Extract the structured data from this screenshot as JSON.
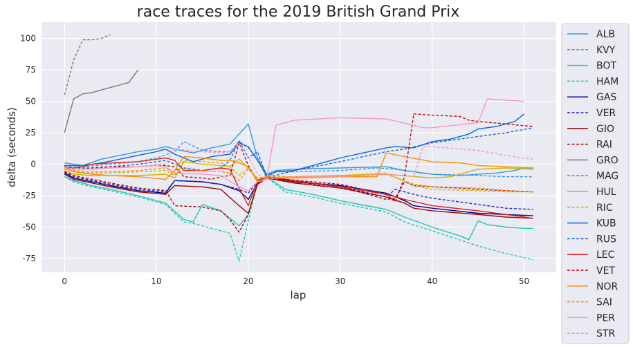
{
  "chart_data": {
    "type": "line",
    "title": "race traces for the 2019 British Grand Prix",
    "xlabel": "lap",
    "ylabel": "delta (seconds)",
    "xlim": [
      -2.5,
      53.5
    ],
    "ylim": [
      -86,
      113
    ],
    "xticks": [
      0,
      10,
      20,
      30,
      40,
      50
    ],
    "yticks": [
      -75,
      -50,
      -25,
      0,
      25,
      50,
      75,
      100
    ],
    "grid": true,
    "background": "#eaeaf2",
    "legend_position": "right, outside",
    "series": [
      {
        "name": "ALB",
        "color": "#3497dc",
        "dash": false,
        "x": [
          0,
          2,
          4,
          6,
          8,
          10,
          11,
          12,
          14,
          16,
          18,
          19,
          20,
          21,
          22,
          23,
          25,
          30,
          35,
          37,
          40,
          43,
          45,
          47,
          49,
          50,
          51
        ],
        "y": [
          1,
          -1,
          4,
          7,
          10,
          12,
          14,
          12,
          9,
          13,
          16,
          24,
          32,
          5,
          -8,
          -5,
          -4,
          -3,
          -2,
          -5,
          -8,
          -9,
          -8,
          -7,
          -5,
          -3,
          -3
        ]
      },
      {
        "name": "KVY",
        "color": "#3497dc",
        "dash": true,
        "x": [
          0,
          2,
          5,
          8,
          10,
          12,
          13,
          15,
          17,
          18,
          19,
          20,
          21,
          22,
          23,
          25,
          30,
          34,
          36,
          38,
          40,
          45,
          48,
          51
        ],
        "y": [
          -1,
          -2,
          0,
          2,
          5,
          10,
          18,
          11,
          10,
          10,
          18,
          13,
          5,
          -11,
          -6,
          -6,
          -5,
          -3,
          -4,
          -6,
          -8,
          -9,
          -10,
          -10
        ]
      },
      {
        "name": "BOT",
        "color": "#1ec8b4",
        "dash": false,
        "x": [
          0,
          1,
          3,
          5,
          8,
          11,
          13,
          14,
          15,
          17,
          19,
          20,
          21,
          22,
          24,
          27,
          30,
          35,
          37,
          40,
          43,
          44,
          45,
          46,
          48,
          50,
          51
        ],
        "y": [
          -10,
          -13,
          -17,
          -20,
          -25,
          -31,
          -44,
          -46,
          -32,
          -37,
          -49,
          -40,
          -14,
          -10,
          -20,
          -24,
          -29,
          -36,
          -42,
          -50,
          -57,
          -60,
          -45,
          -48,
          -50,
          -51,
          -51
        ]
      },
      {
        "name": "HAM",
        "color": "#1ec8b4",
        "dash": true,
        "x": [
          0,
          1,
          3,
          5,
          8,
          11,
          13,
          14,
          16,
          18,
          19,
          20,
          21,
          22,
          24,
          27,
          30,
          35,
          37,
          40,
          45,
          48,
          51
        ],
        "y": [
          -10,
          -14,
          -18,
          -21,
          -26,
          -32,
          -46,
          -47,
          -51,
          -55,
          -77,
          -45,
          -14,
          -10,
          -22,
          -26,
          -31,
          -38,
          -46,
          -53,
          -65,
          -71,
          -76
        ]
      },
      {
        "name": "GAS",
        "color": "#00008b",
        "dash": false,
        "x": [
          0,
          1,
          3,
          5,
          8,
          11,
          12,
          15,
          17,
          19,
          20,
          21,
          22,
          25,
          30,
          35,
          37,
          38,
          40,
          45,
          48,
          51
        ],
        "y": [
          -7,
          -11,
          -14,
          -17,
          -21,
          -23,
          -13,
          -14,
          -16,
          -21,
          -28,
          -15,
          -10,
          -14,
          -17,
          -23,
          -29,
          -33,
          -35,
          -39,
          -40,
          -41
        ]
      },
      {
        "name": "VER",
        "color": "#1e23d2",
        "dash": true,
        "x": [
          0,
          1,
          3,
          5,
          8,
          11,
          12,
          15,
          17,
          19,
          20,
          21,
          22,
          25,
          30,
          35,
          36,
          38,
          40,
          45,
          48,
          51
        ],
        "y": [
          -6,
          -10,
          -13,
          -16,
          -20,
          -22,
          -13,
          -14,
          -16,
          -20,
          -23,
          -14,
          -10,
          -14,
          -18,
          -26,
          -20,
          -24,
          -27,
          -32,
          -35,
          -36
        ]
      },
      {
        "name": "GIO",
        "color": "#9b0000",
        "dash": false,
        "x": [
          0,
          1,
          3,
          5,
          8,
          11,
          12,
          15,
          17,
          19,
          20,
          21,
          22,
          25,
          30,
          35,
          37,
          38,
          40,
          45,
          48,
          51
        ],
        "y": [
          -8,
          -12,
          -15,
          -18,
          -22,
          -24,
          -17,
          -18,
          -20,
          -33,
          -39,
          -16,
          -11,
          -15,
          -19,
          -26,
          -31,
          -35,
          -37,
          -40,
          -42,
          -43
        ]
      },
      {
        "name": "RAI",
        "color": "#aa0000",
        "dash": true,
        "x": [
          0,
          1,
          3,
          5,
          8,
          11,
          12,
          15,
          17,
          18,
          19,
          20,
          21,
          22,
          25,
          30,
          35,
          36,
          37,
          38,
          40,
          43,
          45,
          48,
          51
        ],
        "y": [
          -6,
          -9,
          -12,
          -15,
          -19,
          -21,
          -33,
          -34,
          -37,
          -44,
          -54,
          -40,
          -15,
          -11,
          -14,
          -18,
          -28,
          -27,
          -14,
          -17,
          -18,
          -19,
          -20,
          -21,
          -22
        ]
      },
      {
        "name": "GRO",
        "color": "#787878",
        "dash": false,
        "x": [
          0,
          1,
          2,
          3,
          4,
          5,
          6,
          7,
          8
        ],
        "y": [
          25,
          52,
          56,
          57,
          59,
          61,
          63,
          65,
          75
        ]
      },
      {
        "name": "MAG",
        "color": "#787878",
        "dash": true,
        "x": [
          0,
          1,
          2,
          3,
          4,
          5
        ],
        "y": [
          55,
          83,
          99,
          99,
          100,
          103
        ]
      },
      {
        "name": "HUL",
        "color": "#c8b400",
        "dash": false,
        "x": [
          0,
          1,
          3,
          5,
          8,
          11,
          12,
          13,
          15,
          17,
          18,
          19,
          20,
          21,
          22,
          25,
          30,
          35,
          40,
          42,
          45,
          48,
          51
        ],
        "y": [
          -5,
          -8,
          -9,
          -9,
          -9,
          -8,
          -11,
          2,
          0,
          -1,
          -2,
          4,
          -3,
          -12,
          -11,
          -11,
          -10,
          -8,
          -11,
          -10,
          -4,
          -3,
          -4
        ]
      },
      {
        "name": "RIC",
        "color": "#c8b400",
        "dash": true,
        "x": [
          0,
          1,
          3,
          5,
          8,
          11,
          12,
          13,
          15,
          17,
          18,
          19,
          20,
          21,
          22,
          25,
          30,
          35,
          38,
          40,
          45,
          48,
          51
        ],
        "y": [
          -4,
          -6,
          -7,
          -7,
          -6,
          -5,
          -9,
          3,
          2,
          1,
          -2,
          -9,
          -3,
          -12,
          -11,
          -10,
          -9,
          -7,
          -17,
          -20,
          -21,
          -22,
          -22
        ]
      },
      {
        "name": "KUB",
        "color": "#0a64dc",
        "dash": false,
        "x": [
          0,
          2,
          4,
          6,
          8,
          10,
          11,
          12,
          13,
          14,
          16,
          18,
          19,
          20,
          21,
          22,
          23,
          25,
          30,
          35,
          36,
          38,
          40,
          42,
          44,
          45,
          47,
          49,
          50
        ],
        "y": [
          -1,
          -1,
          1,
          4,
          7,
          10,
          12,
          8,
          5,
          2,
          6,
          8,
          17,
          14,
          3,
          -9,
          -6,
          -5,
          5,
          13,
          14,
          13,
          18,
          20,
          24,
          28,
          30,
          34,
          40
        ]
      },
      {
        "name": "RUS",
        "color": "#0a64dc",
        "dash": true,
        "x": [
          0,
          1,
          3,
          5,
          8,
          10,
          11,
          13,
          15,
          17,
          18,
          19,
          20,
          21,
          22,
          23,
          25,
          30,
          35,
          37,
          40,
          45,
          48,
          51
        ],
        "y": [
          -1,
          -3,
          -3,
          -2,
          0,
          2,
          3,
          -3,
          -5,
          -3,
          3,
          19,
          5,
          10,
          -10,
          -9,
          -5,
          2,
          10,
          12,
          17,
          22,
          25,
          29
        ]
      },
      {
        "name": "LEC",
        "color": "#dc1e1e",
        "dash": false,
        "x": [
          0,
          1,
          2,
          3,
          5,
          8,
          10,
          11,
          12,
          13,
          15,
          17,
          18,
          19,
          20,
          21,
          22,
          24,
          27,
          30,
          35,
          37,
          40,
          45,
          48,
          51
        ],
        "y": [
          -3,
          -3,
          -2,
          0,
          1,
          2,
          4,
          5,
          3,
          -5,
          -5,
          -3,
          -4,
          -19,
          -33,
          -13,
          -10,
          -12,
          -15,
          -18,
          -24,
          -28,
          -33,
          -37,
          -40,
          -43
        ]
      },
      {
        "name": "VET",
        "color": "#c80000",
        "dash": true,
        "x": [
          0,
          1,
          2,
          3,
          5,
          8,
          10,
          11,
          12,
          13,
          15,
          16,
          17,
          18,
          19,
          20,
          21,
          22,
          24,
          27,
          30,
          35,
          36,
          37,
          38,
          40,
          43,
          44,
          45,
          48,
          51
        ],
        "y": [
          -2,
          -4,
          -4,
          -3,
          -2,
          -2,
          -1,
          -1,
          -2,
          -10,
          -11,
          -12,
          -10,
          -9,
          17,
          -1,
          -14,
          -11,
          -12,
          -14,
          -16,
          -24,
          -30,
          -10,
          40,
          39,
          38,
          35,
          34,
          32,
          30
        ]
      },
      {
        "name": "NOR",
        "color": "#ff8c00",
        "dash": false,
        "x": [
          0,
          1,
          3,
          5,
          8,
          11,
          12,
          13,
          15,
          17,
          18,
          19,
          20,
          21,
          22,
          25,
          30,
          34,
          35,
          37,
          40,
          43,
          45,
          48,
          51
        ],
        "y": [
          -3,
          -6,
          -8,
          -9,
          -10,
          -12,
          -5,
          6,
          5,
          3,
          3,
          1,
          -2,
          -14,
          -11,
          -11,
          -10,
          -10,
          9,
          6,
          2,
          1,
          -1,
          -2,
          -3
        ]
      },
      {
        "name": "SAI",
        "color": "#ff8c00",
        "dash": true,
        "x": [
          0,
          1,
          3,
          5,
          8,
          11,
          12,
          13,
          15,
          17,
          18,
          19,
          20,
          21,
          22,
          25,
          30,
          35,
          38,
          40,
          45,
          48,
          51
        ],
        "y": [
          -2,
          -5,
          -6,
          -6,
          -5,
          -3,
          -8,
          -4,
          -5,
          -6,
          -7,
          -13,
          -4,
          -11,
          -10,
          -10,
          -9,
          -8,
          -16,
          -18,
          -19,
          -21,
          -22
        ]
      },
      {
        "name": "PER",
        "color": "#f596c8",
        "dash": false,
        "x": [
          0,
          3,
          5,
          8,
          10,
          11,
          12,
          15,
          17,
          19,
          20,
          21,
          22,
          23,
          25,
          30,
          35,
          38,
          39,
          40,
          45,
          46,
          48,
          50
        ],
        "y": [
          -4,
          -4,
          -3,
          -2,
          -1,
          -2,
          -7,
          -8,
          -9,
          -18,
          -21,
          -14,
          -12,
          31,
          35,
          37,
          36,
          31,
          29,
          29,
          33,
          52,
          51,
          50
        ]
      },
      {
        "name": "STR",
        "color": "#f596c8",
        "dash": true,
        "x": [
          0,
          2,
          5,
          8,
          10,
          11,
          12,
          15,
          17,
          18,
          19,
          20,
          21,
          22,
          23,
          25,
          30,
          35,
          37,
          38,
          39,
          40,
          45,
          48,
          51
        ],
        "y": [
          -3,
          -4,
          -3,
          -2,
          0,
          0,
          12,
          10,
          9,
          10,
          17,
          6,
          -8,
          -12,
          -11,
          -10,
          -10,
          -8,
          -9,
          -10,
          14,
          14,
          11,
          7,
          4
        ]
      }
    ]
  }
}
